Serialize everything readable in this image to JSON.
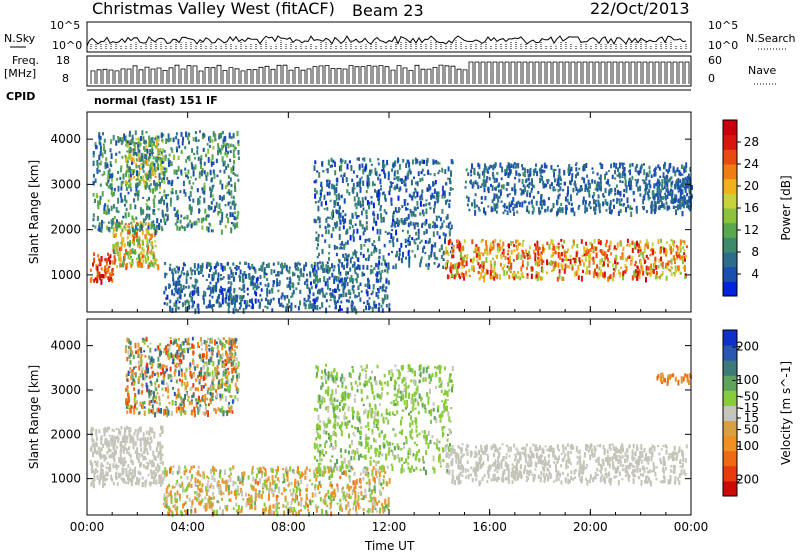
{
  "header": {
    "radar": "Christmas Valley West (fitACF)",
    "beam": "Beam 23",
    "date": "22/Oct/2013"
  },
  "info_panels": {
    "nsky_label": "N.Sky",
    "nsky_ticks": [
      "10^5",
      "10^0"
    ],
    "nsearch_label": "N.Search",
    "nsearch_ticks": [
      "10^5",
      "10^0"
    ],
    "freq_label": "Freq.",
    "freq_unit": "[MHz]",
    "freq_ticks": [
      "18",
      "8"
    ],
    "nave_label": "Nave",
    "nave_ticks": [
      "60",
      "0"
    ],
    "cpid_label": "CPID",
    "cpid_text": "normal (fast) 151 IF"
  },
  "colors": {
    "power_scale": [
      "#0022dd",
      "#1a4fb0",
      "#2c6d8e",
      "#3d8a6c",
      "#59a84d",
      "#8cc23c",
      "#c8d23a",
      "#f0b21c",
      "#f07d14",
      "#e84a10",
      "#d9160e",
      "#c8000c"
    ],
    "velocity_scale": [
      "#1030c8",
      "#2a58b0",
      "#3e7a7a",
      "#5ea45c",
      "#88cc3c",
      "#c4c4b8",
      "#d8a040",
      "#f09020",
      "#f06a14",
      "#e83a0c",
      "#cc0a06"
    ]
  },
  "chart_data": [
    {
      "type": "heatmap",
      "title": "",
      "parameter": "Power",
      "xlabel": "",
      "ylabel": "Slant Range [km]",
      "x_ticks": [
        "00:00",
        "04:00",
        "08:00",
        "12:00",
        "16:00",
        "20:00",
        "00:00"
      ],
      "y_ticks": [
        1000,
        2000,
        3000,
        4000
      ],
      "xlim_hours": [
        0,
        24
      ],
      "ylim_km": [
        180,
        4600
      ],
      "colorbar": {
        "label": "Power [dB]",
        "ticks": [
          4,
          8,
          12,
          16,
          20,
          24,
          28
        ],
        "range": [
          0,
          32
        ]
      },
      "regions": [
        {
          "t": [
            0.1,
            1.0
          ],
          "r": [
            900,
            1500
          ],
          "values": [
            22,
            32
          ]
        },
        {
          "t": [
            1.0,
            2.8
          ],
          "r": [
            1200,
            2200
          ],
          "values": [
            10,
            26
          ]
        },
        {
          "t": [
            1.5,
            3.0
          ],
          "r": [
            3000,
            4100
          ],
          "values": [
            6,
            22
          ]
        },
        {
          "t": [
            0.2,
            6.0
          ],
          "r": [
            2000,
            4200
          ],
          "values": [
            3,
            14
          ]
        },
        {
          "t": [
            3.0,
            12.0
          ],
          "r": [
            250,
            1300
          ],
          "values": [
            2,
            10
          ]
        },
        {
          "t": [
            9.0,
            14.5
          ],
          "r": [
            1200,
            3600
          ],
          "values": [
            2,
            10
          ]
        },
        {
          "t": [
            14.2,
            23.8
          ],
          "r": [
            950,
            1800
          ],
          "values": [
            14,
            30
          ]
        },
        {
          "t": [
            15.0,
            24.0
          ],
          "r": [
            2400,
            3500
          ],
          "values": [
            3,
            9
          ]
        },
        {
          "t": [
            22.5,
            24.0
          ],
          "r": [
            2500,
            3200
          ],
          "values": [
            3,
            9
          ]
        }
      ]
    },
    {
      "type": "heatmap",
      "title": "",
      "parameter": "Velocity",
      "xlabel": "Time UT",
      "ylabel": "Slant Range [km]",
      "x_ticks": [
        "00:00",
        "04:00",
        "08:00",
        "12:00",
        "16:00",
        "20:00",
        "00:00"
      ],
      "y_ticks": [
        1000,
        2000,
        3000,
        4000
      ],
      "xlim_hours": [
        0,
        24
      ],
      "ylim_km": [
        180,
        4600
      ],
      "colorbar": {
        "label": "Velocity [m s^-1]",
        "ticks": [
          200,
          100,
          50,
          15,
          -15,
          -50,
          -100,
          -200
        ],
        "range": [
          -250,
          250
        ]
      },
      "regions": [
        {
          "t": [
            0.1,
            3.0
          ],
          "r": [
            900,
            2200
          ],
          "values": [
            -10,
            10
          ]
        },
        {
          "t": [
            1.5,
            6.0
          ],
          "r": [
            2500,
            4200
          ],
          "values": [
            -200,
            200
          ]
        },
        {
          "t": [
            3.0,
            12.0
          ],
          "r": [
            250,
            1300
          ],
          "values": [
            -120,
            80
          ]
        },
        {
          "t": [
            9.0,
            14.5
          ],
          "r": [
            1200,
            3600
          ],
          "values": [
            10,
            80
          ]
        },
        {
          "t": [
            14.2,
            23.8
          ],
          "r": [
            950,
            1800
          ],
          "values": [
            -10,
            10
          ]
        },
        {
          "t": [
            22.5,
            24.0
          ],
          "r": [
            3200,
            3400
          ],
          "values": [
            -150,
            -50
          ]
        }
      ]
    }
  ]
}
